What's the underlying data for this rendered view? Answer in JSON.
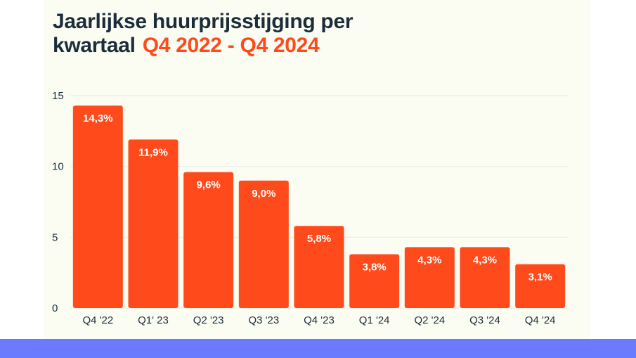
{
  "header": {
    "title_main": "Jaarlijkse huurprijsstijging per",
    "title_line2": "kwartaal",
    "title_accent": "Q4 2022 - Q4 2024"
  },
  "colors": {
    "bar": "#ff4a1c",
    "title": "#1b2d3a",
    "accent": "#ff4a1c",
    "background": "#fbfdf3",
    "band": "#6b7bff"
  },
  "chart_data": {
    "type": "bar",
    "title": "Jaarlijkse huurprijsstijging per kwartaal Q4 2022 - Q4 2024",
    "categories": [
      "Q4 '22",
      "Q1' 23",
      "Q2 '23",
      "Q3 '23",
      "Q4 '23",
      "Q1 '24",
      "Q2 '24",
      "Q3 '24",
      "Q4 '24"
    ],
    "values": [
      14.3,
      11.9,
      9.6,
      9.0,
      5.8,
      3.8,
      4.3,
      4.3,
      3.1
    ],
    "data_labels": [
      "14,3%",
      "11,9%",
      "9,6%",
      "9,0%",
      "5,8%",
      "3,8%",
      "4,3%",
      "4,3%",
      "3,1%"
    ],
    "yticks": [
      0,
      5,
      10,
      15
    ],
    "ylim": [
      0,
      15
    ],
    "xlabel": "",
    "ylabel": "",
    "grid": true,
    "legend": "none"
  }
}
